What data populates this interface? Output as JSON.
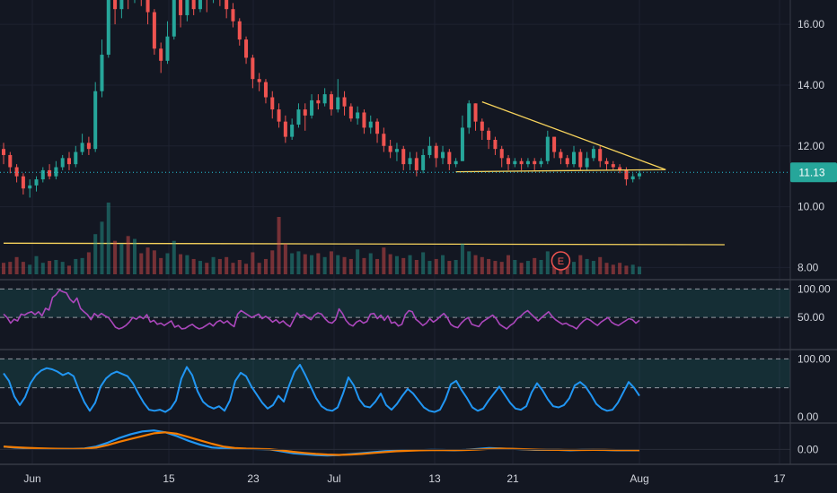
{
  "chart_data": [
    {
      "type": "candlestick",
      "name_in_ui": "price-pane",
      "y_ticks": [
        8.0,
        10.0,
        12.0,
        14.0,
        16.0
      ],
      "y_tick_labels": [
        "8.00",
        "10.00",
        "12.00",
        "14.00",
        "16.00"
      ],
      "ylim": [
        7.6,
        16.8
      ],
      "last_price": 11.13,
      "last_price_label": "11.13",
      "colors": {
        "up": "#26a69a",
        "down": "#ef5350",
        "trendline": "#f7d35c",
        "last_price_line": "#26c6da"
      },
      "candles": [
        [
          11.9,
          11.7,
          12.1,
          11.4
        ],
        [
          11.7,
          11.3,
          11.8,
          11.1
        ],
        [
          11.3,
          11.0,
          11.4,
          10.8
        ],
        [
          11.0,
          10.6,
          11.1,
          10.4
        ],
        [
          10.6,
          10.7,
          10.9,
          10.3
        ],
        [
          10.7,
          10.9,
          11.0,
          10.5
        ],
        [
          10.9,
          11.2,
          11.3,
          10.8
        ],
        [
          11.2,
          11.0,
          11.4,
          10.9
        ],
        [
          11.0,
          11.3,
          11.5,
          10.9
        ],
        [
          11.3,
          11.6,
          11.7,
          11.2
        ],
        [
          11.6,
          11.4,
          11.8,
          11.2
        ],
        [
          11.4,
          11.8,
          12.0,
          11.3
        ],
        [
          11.8,
          12.1,
          12.4,
          11.7
        ],
        [
          12.1,
          11.9,
          12.3,
          11.7
        ],
        [
          11.9,
          13.8,
          14.1,
          11.8
        ],
        [
          13.8,
          15.0,
          15.5,
          13.6
        ],
        [
          15.0,
          16.8,
          17.2,
          14.9
        ],
        [
          16.8,
          16.5,
          17.3,
          16.0
        ],
        [
          16.5,
          17.2,
          17.5,
          16.2
        ],
        [
          17.2,
          16.9,
          17.6,
          16.5
        ],
        [
          16.9,
          17.3,
          17.8,
          16.7
        ],
        [
          17.3,
          17.0,
          17.6,
          16.6
        ],
        [
          17.0,
          16.4,
          17.2,
          16.0
        ],
        [
          16.4,
          15.2,
          16.5,
          15.0
        ],
        [
          15.2,
          14.8,
          15.4,
          14.4
        ],
        [
          14.8,
          15.6,
          16.1,
          14.7
        ],
        [
          15.6,
          16.9,
          17.3,
          15.5
        ],
        [
          16.9,
          16.3,
          17.1,
          15.9
        ],
        [
          16.3,
          16.9,
          17.2,
          16.1
        ],
        [
          16.9,
          16.5,
          17.2,
          16.3
        ],
        [
          16.5,
          17.1,
          17.4,
          16.4
        ],
        [
          17.1,
          16.8,
          17.3,
          16.4
        ],
        [
          16.8,
          17.2,
          17.5,
          16.7
        ],
        [
          17.2,
          16.9,
          17.4,
          16.6
        ],
        [
          16.9,
          16.5,
          17.1,
          16.2
        ],
        [
          16.5,
          16.1,
          16.7,
          15.9
        ],
        [
          16.1,
          15.5,
          16.2,
          15.3
        ],
        [
          15.5,
          14.9,
          15.6,
          14.7
        ],
        [
          14.9,
          14.2,
          15.0,
          13.9
        ],
        [
          14.2,
          14.1,
          14.4,
          13.8
        ],
        [
          14.1,
          13.6,
          14.2,
          13.4
        ],
        [
          13.6,
          13.2,
          13.8,
          12.9
        ],
        [
          13.2,
          12.8,
          13.4,
          12.6
        ],
        [
          12.8,
          12.3,
          13.0,
          12.1
        ],
        [
          12.3,
          12.7,
          12.9,
          12.2
        ],
        [
          12.7,
          13.2,
          13.4,
          12.6
        ],
        [
          13.2,
          13.0,
          13.4,
          12.5
        ],
        [
          13.0,
          13.5,
          13.7,
          12.9
        ],
        [
          13.5,
          13.4,
          13.7,
          13.2
        ],
        [
          13.4,
          13.7,
          13.9,
          13.3
        ],
        [
          13.7,
          13.2,
          13.8,
          13.0
        ],
        [
          13.2,
          13.6,
          14.2,
          13.1
        ],
        [
          13.6,
          13.3,
          13.8,
          13.0
        ],
        [
          13.3,
          12.9,
          13.4,
          12.8
        ],
        [
          12.9,
          13.1,
          13.3,
          12.7
        ],
        [
          13.1,
          12.6,
          13.2,
          12.4
        ],
        [
          12.6,
          12.8,
          13.0,
          12.4
        ],
        [
          12.8,
          12.4,
          12.9,
          12.1
        ],
        [
          12.4,
          12.0,
          12.6,
          11.8
        ],
        [
          12.0,
          11.8,
          12.2,
          11.6
        ],
        [
          11.8,
          11.9,
          12.1,
          11.5
        ],
        [
          11.9,
          11.4,
          12.0,
          11.2
        ],
        [
          11.4,
          11.6,
          11.8,
          11.2
        ],
        [
          11.6,
          11.2,
          11.8,
          11.0
        ],
        [
          11.2,
          11.7,
          11.9,
          11.1
        ],
        [
          11.7,
          12.0,
          12.3,
          11.6
        ],
        [
          12.0,
          11.6,
          12.1,
          11.3
        ],
        [
          11.6,
          11.8,
          12.0,
          11.4
        ],
        [
          11.8,
          11.4,
          11.9,
          11.2
        ],
        [
          11.4,
          11.5,
          11.6,
          11.3
        ],
        [
          11.5,
          12.6,
          13.0,
          11.5
        ],
        [
          12.6,
          13.4,
          13.5,
          12.4
        ],
        [
          13.4,
          12.8,
          13.4,
          12.5
        ],
        [
          12.8,
          12.5,
          12.9,
          12.2
        ],
        [
          12.5,
          12.2,
          12.6,
          11.9
        ],
        [
          12.2,
          11.9,
          12.3,
          11.7
        ],
        [
          11.9,
          11.6,
          12.0,
          11.3
        ],
        [
          11.6,
          11.4,
          11.7,
          11.2
        ],
        [
          11.4,
          11.5,
          11.6,
          11.3
        ],
        [
          11.5,
          11.4,
          11.6,
          11.2
        ],
        [
          11.4,
          11.5,
          11.6,
          11.3
        ],
        [
          11.5,
          11.4,
          11.6,
          11.2
        ],
        [
          11.4,
          11.5,
          11.6,
          11.3
        ],
        [
          11.5,
          12.3,
          12.5,
          11.4
        ],
        [
          12.3,
          11.8,
          12.3,
          11.6
        ],
        [
          11.8,
          11.6,
          11.9,
          11.4
        ],
        [
          11.6,
          11.4,
          11.7,
          11.3
        ],
        [
          11.4,
          11.8,
          12.0,
          11.3
        ],
        [
          11.8,
          11.3,
          11.9,
          11.2
        ],
        [
          11.3,
          11.6,
          11.8,
          11.2
        ],
        [
          11.6,
          11.9,
          12.0,
          11.5
        ],
        [
          11.9,
          11.5,
          12.0,
          11.3
        ],
        [
          11.5,
          11.4,
          11.6,
          11.2
        ],
        [
          11.4,
          11.3,
          11.5,
          11.2
        ],
        [
          11.3,
          11.2,
          11.4,
          11.1
        ],
        [
          11.2,
          10.9,
          11.3,
          10.7
        ],
        [
          10.9,
          11.0,
          11.1,
          10.8
        ],
        [
          11.0,
          11.1,
          11.2,
          10.9
        ]
      ],
      "trendlines": [
        {
          "from": [
            73,
            13.45
          ],
          "to": [
            101,
            11.22
          ]
        },
        {
          "from": [
            69,
            11.15
          ],
          "to": [
            101,
            11.22
          ]
        },
        {
          "from": [
            0,
            8.8
          ],
          "to": [
            110,
            8.75
          ]
        }
      ]
    },
    {
      "type": "bar",
      "name_in_ui": "volume",
      "earnings_marker_label": "E",
      "earnings_marker_index": 85,
      "values": [
        12,
        13,
        18,
        13,
        10,
        19,
        12,
        14,
        15,
        13,
        9,
        16,
        17,
        23,
        42,
        55,
        75,
        35,
        32,
        40,
        37,
        22,
        28,
        25,
        17,
        22,
        35,
        21,
        20,
        16,
        14,
        12,
        18,
        16,
        18,
        12,
        15,
        11,
        23,
        12,
        16,
        25,
        60,
        32,
        22,
        24,
        21,
        20,
        22,
        18,
        24,
        20,
        18,
        16,
        26,
        17,
        22,
        16,
        28,
        21,
        19,
        17,
        20,
        15,
        23,
        14,
        16,
        20,
        14,
        15,
        32,
        24,
        20,
        18,
        16,
        14,
        13,
        20,
        15,
        12,
        14,
        17,
        15,
        24,
        16,
        14,
        12,
        13,
        20,
        16,
        14,
        18,
        12,
        10,
        12,
        9,
        10,
        8,
        7
      ]
    },
    {
      "type": "line",
      "name_in_ui": "rsi",
      "y_ticks": [
        50.0,
        100.0
      ],
      "y_tick_labels": [
        "50.00",
        "100.00"
      ],
      "ylim": [
        0,
        110
      ],
      "band": [
        50,
        100
      ],
      "color": "#ab47bc",
      "values": [
        56,
        50,
        40,
        47,
        44,
        56,
        54,
        58,
        60,
        55,
        60,
        53,
        66,
        63,
        85,
        90,
        98,
        95,
        93,
        82,
        76,
        84,
        66,
        60,
        55,
        46,
        57,
        52,
        57,
        53,
        50,
        42,
        33,
        30,
        32,
        36,
        42,
        50,
        47,
        52,
        48,
        55,
        42,
        45,
        38,
        40,
        36,
        40,
        44,
        33,
        36,
        30,
        31,
        35,
        38,
        33,
        30,
        32,
        36,
        40,
        35,
        42,
        45,
        40,
        44,
        38,
        34,
        56,
        62,
        58,
        54,
        50,
        53,
        56,
        48,
        52,
        48,
        42,
        46,
        40,
        44,
        38,
        34,
        46,
        58,
        52,
        55,
        50,
        46,
        54,
        58,
        56,
        48,
        42,
        40,
        46,
        65,
        57,
        45,
        38,
        35,
        42,
        45,
        40,
        43,
        56,
        57,
        48,
        54,
        45,
        53,
        40,
        42,
        35,
        38,
        55,
        62,
        60,
        47,
        42,
        36,
        40,
        48,
        42,
        46,
        52,
        57,
        50,
        38,
        34,
        32,
        40,
        46,
        50,
        38,
        36,
        34,
        42,
        46,
        50,
        54,
        48,
        38,
        34,
        30,
        36,
        40,
        48,
        52,
        58,
        62,
        56,
        50,
        44,
        50,
        55,
        60,
        52,
        46,
        42,
        38,
        40,
        36,
        34,
        30,
        38,
        44,
        48,
        45,
        40,
        36,
        42,
        46,
        50,
        42,
        38,
        36,
        40,
        44,
        48,
        46,
        40,
        45
      ]
    },
    {
      "type": "line",
      "name_in_ui": "stochastic",
      "y_ticks": [
        0.0,
        100.0
      ],
      "y_tick_labels": [
        "0.00",
        "100.00"
      ],
      "ylim": [
        -5,
        110
      ],
      "band": [
        50,
        100
      ],
      "color": "#2196f3",
      "values": [
        75,
        62,
        35,
        20,
        34,
        58,
        72,
        80,
        84,
        82,
        78,
        72,
        76,
        70,
        46,
        25,
        10,
        24,
        52,
        66,
        74,
        78,
        74,
        70,
        58,
        40,
        24,
        12,
        10,
        12,
        8,
        14,
        28,
        66,
        86,
        72,
        44,
        26,
        18,
        14,
        18,
        10,
        28,
        62,
        76,
        70,
        52,
        38,
        24,
        14,
        20,
        36,
        26,
        54,
        78,
        90,
        72,
        52,
        32,
        18,
        12,
        10,
        16,
        40,
        68,
        54,
        30,
        18,
        16,
        26,
        40,
        20,
        12,
        22,
        36,
        48,
        40,
        28,
        16,
        10,
        8,
        12,
        30,
        56,
        62,
        46,
        32,
        16,
        10,
        14,
        28,
        40,
        52,
        38,
        24,
        14,
        12,
        18,
        42,
        58,
        46,
        30,
        18,
        16,
        20,
        32,
        54,
        60,
        52,
        38,
        22,
        14,
        10,
        12,
        24,
        42,
        60,
        50,
        36
      ]
    },
    {
      "type": "line",
      "name_in_ui": "macd",
      "y_ticks": [
        0.0
      ],
      "y_tick_labels": [
        "0.00"
      ],
      "ylim": [
        -1.2,
        2.4
      ],
      "series": [
        {
          "color": "#2196f3",
          "values": [
            0.3,
            0.18,
            0.12,
            0.08,
            0.05,
            0.04,
            0.05,
            0.1,
            0.3,
            0.7,
            1.2,
            1.6,
            1.9,
            2.0,
            1.8,
            1.4,
            0.9,
            0.5,
            0.2,
            0.1,
            0.06,
            0.05,
            0.03,
            0.0,
            -0.2,
            -0.4,
            -0.5,
            -0.6,
            -0.65,
            -0.6,
            -0.5,
            -0.4,
            -0.3,
            -0.2,
            -0.15,
            -0.1,
            -0.08,
            -0.05,
            -0.06,
            -0.1,
            -0.05,
            0.05,
            0.15,
            0.1,
            0.05,
            0.0,
            -0.05,
            -0.05,
            -0.05,
            -0.1,
            -0.05,
            -0.05,
            -0.06,
            -0.1,
            -0.1,
            -0.1
          ]
        },
        {
          "color": "#f57c00",
          "values": [
            0.3,
            0.22,
            0.16,
            0.12,
            0.08,
            0.06,
            0.05,
            0.07,
            0.18,
            0.45,
            0.8,
            1.1,
            1.4,
            1.7,
            1.8,
            1.65,
            1.3,
            0.95,
            0.6,
            0.3,
            0.15,
            0.08,
            0.05,
            0.02,
            -0.1,
            -0.25,
            -0.38,
            -0.48,
            -0.55,
            -0.58,
            -0.55,
            -0.48,
            -0.38,
            -0.28,
            -0.2,
            -0.15,
            -0.1,
            -0.08,
            -0.08,
            -0.08,
            -0.06,
            -0.02,
            0.05,
            0.08,
            0.06,
            0.02,
            -0.02,
            -0.04,
            -0.05,
            -0.06,
            -0.06,
            -0.05,
            -0.05,
            -0.07,
            -0.08,
            -0.09
          ]
        }
      ]
    }
  ],
  "x_axis": {
    "labels": [
      "Jun",
      "15",
      "23",
      "Jul",
      "13",
      "21",
      "Aug",
      "17"
    ]
  }
}
